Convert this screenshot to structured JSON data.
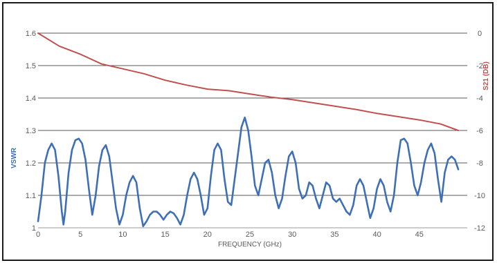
{
  "chart_data": {
    "type": "line",
    "xlabel": "FREQUENCY  (GHz)",
    "x_ticks": [
      0,
      5,
      10,
      15,
      20,
      25,
      30,
      35,
      40,
      45
    ],
    "xlim": [
      0,
      50
    ],
    "left_axis": {
      "label": "VSWR",
      "color": "#3d6fb6",
      "ylim": [
        1.0,
        1.6
      ],
      "tick_labels": [
        "1",
        "1.1",
        "1.2",
        "1.3",
        "1.4",
        "1.5",
        "1.6"
      ]
    },
    "right_axis": {
      "label": "S21 (DB)",
      "color": "#c0504d",
      "ylim": [
        -12,
        0
      ],
      "tick_labels": [
        "-12",
        "-10",
        "-8",
        "-6",
        "-4",
        "-2",
        "0"
      ]
    },
    "grid": "horizontal",
    "series": [
      {
        "axis": "left",
        "color": "#3d6fb6",
        "x": [
          0.0,
          0.4,
          0.8,
          1.2,
          1.6,
          2.0,
          2.4,
          2.8,
          3.0,
          3.2,
          3.6,
          4.0,
          4.4,
          4.8,
          5.2,
          5.6,
          6.0,
          6.4,
          6.8,
          7.2,
          7.6,
          8.0,
          8.4,
          8.8,
          9.2,
          9.6,
          10.0,
          10.4,
          10.8,
          11.2,
          11.6,
          12.0,
          12.4,
          12.8,
          13.2,
          13.6,
          14.0,
          14.4,
          14.8,
          15.2,
          15.6,
          16.0,
          16.4,
          16.8,
          17.2,
          17.6,
          18.0,
          18.4,
          18.8,
          19.2,
          19.6,
          20.0,
          20.4,
          20.8,
          21.2,
          21.6,
          22.0,
          22.4,
          22.8,
          23.2,
          23.6,
          24.0,
          24.4,
          24.8,
          25.2,
          25.6,
          26.0,
          26.4,
          26.8,
          27.2,
          27.6,
          28.0,
          28.4,
          28.8,
          29.2,
          29.6,
          30.0,
          30.4,
          30.8,
          31.2,
          31.6,
          32.0,
          32.4,
          32.8,
          33.2,
          33.6,
          34.0,
          34.4,
          34.8,
          35.2,
          35.6,
          36.0,
          36.4,
          36.8,
          37.2,
          37.6,
          38.0,
          38.4,
          38.8,
          39.2,
          39.6,
          40.0,
          40.4,
          40.8,
          41.2,
          41.6,
          42.0,
          42.4,
          42.8,
          43.2,
          43.6,
          44.0,
          44.4,
          44.8,
          45.2,
          45.6,
          46.0,
          46.4,
          46.8,
          47.2,
          47.6,
          48.0,
          48.4,
          48.8,
          49.2,
          49.6
        ],
        "values": [
          1.02,
          1.1,
          1.2,
          1.24,
          1.26,
          1.24,
          1.16,
          1.05,
          1.01,
          1.05,
          1.17,
          1.24,
          1.27,
          1.275,
          1.26,
          1.21,
          1.12,
          1.04,
          1.1,
          1.19,
          1.24,
          1.255,
          1.22,
          1.14,
          1.06,
          1.01,
          1.04,
          1.1,
          1.14,
          1.16,
          1.14,
          1.06,
          1.005,
          1.02,
          1.04,
          1.05,
          1.05,
          1.04,
          1.025,
          1.04,
          1.05,
          1.045,
          1.03,
          1.01,
          1.04,
          1.1,
          1.15,
          1.17,
          1.15,
          1.1,
          1.04,
          1.06,
          1.16,
          1.24,
          1.26,
          1.24,
          1.15,
          1.08,
          1.07,
          1.15,
          1.23,
          1.31,
          1.34,
          1.3,
          1.22,
          1.13,
          1.1,
          1.15,
          1.2,
          1.21,
          1.17,
          1.1,
          1.06,
          1.09,
          1.16,
          1.22,
          1.235,
          1.2,
          1.12,
          1.09,
          1.1,
          1.14,
          1.13,
          1.09,
          1.06,
          1.1,
          1.14,
          1.13,
          1.09,
          1.08,
          1.09,
          1.07,
          1.05,
          1.04,
          1.07,
          1.13,
          1.15,
          1.13,
          1.08,
          1.03,
          1.06,
          1.12,
          1.15,
          1.13,
          1.08,
          1.05,
          1.1,
          1.2,
          1.27,
          1.275,
          1.26,
          1.2,
          1.13,
          1.1,
          1.14,
          1.2,
          1.24,
          1.26,
          1.23,
          1.15,
          1.08,
          1.17,
          1.21,
          1.22,
          1.21,
          1.18
        ]
      },
      {
        "axis": "right",
        "color": "#c0504d",
        "x": [
          0,
          2.5,
          5,
          7.5,
          10,
          12.5,
          15,
          17.5,
          20,
          22.5,
          25,
          27.5,
          30,
          32.5,
          35,
          37.5,
          40,
          42.5,
          45,
          47.5,
          49.6
        ],
        "values": [
          0,
          -0.8,
          -1.3,
          -1.9,
          -2.2,
          -2.5,
          -2.9,
          -3.2,
          -3.45,
          -3.55,
          -3.75,
          -3.95,
          -4.1,
          -4.3,
          -4.5,
          -4.7,
          -4.95,
          -5.15,
          -5.35,
          -5.6,
          -6.0
        ]
      }
    ]
  }
}
